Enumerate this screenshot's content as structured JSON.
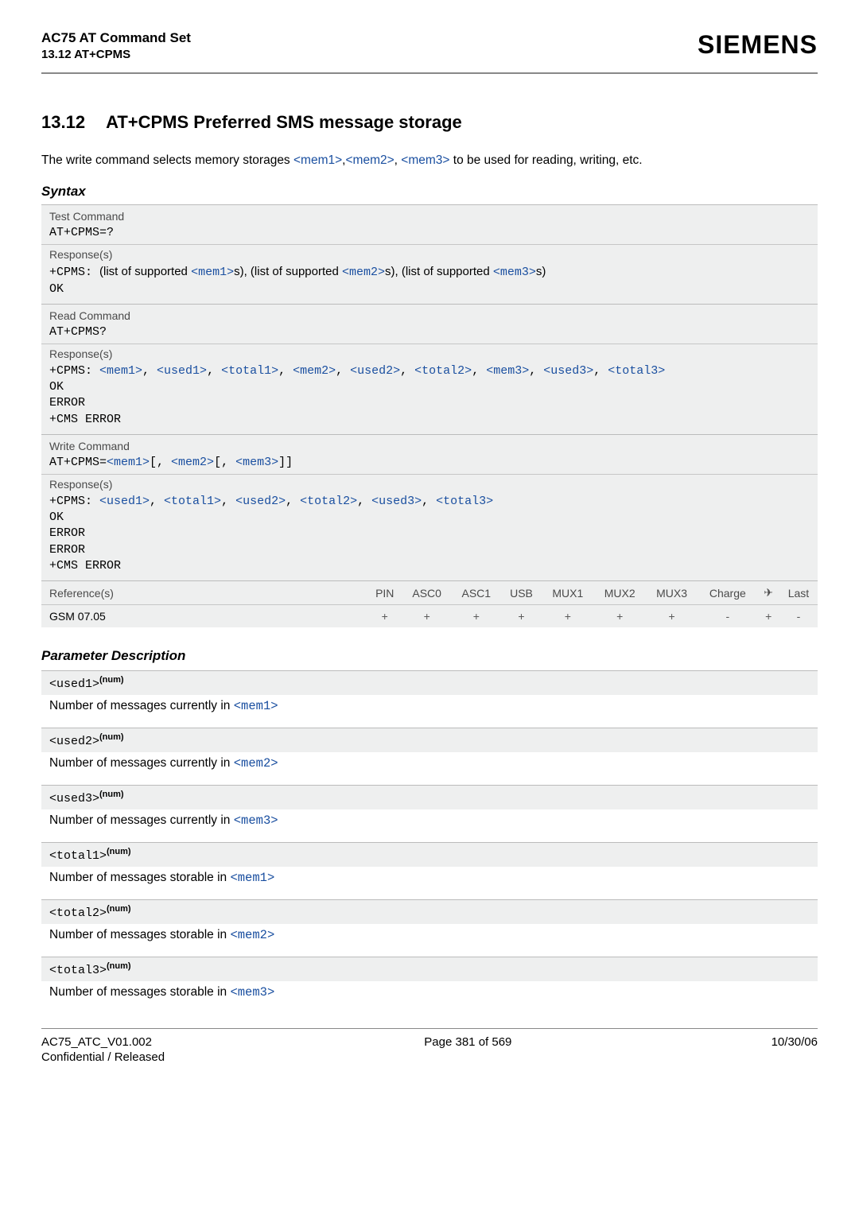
{
  "header": {
    "title1": "AC75 AT Command Set",
    "title2": "13.12 AT+CPMS",
    "brand": "SIEMENS"
  },
  "section": {
    "num": "13.12",
    "title": "AT+CPMS   Preferred SMS message storage"
  },
  "intro": {
    "pre": "The write command selects memory storages ",
    "m1": "<mem1>",
    "c1": ",",
    "m2": "<mem2>",
    "c2": ", ",
    "m3": "<mem3>",
    "post": " to be used for reading, writing, etc."
  },
  "labels": {
    "syntax": "Syntax",
    "test": "Test Command",
    "read": "Read Command",
    "write": "Write Command",
    "resp": "Response(s)",
    "ref": "Reference(s)",
    "pdesc": "Parameter Description"
  },
  "syntax": {
    "test_cmd": "AT+CPMS=?",
    "test_resp_pre": "+CPMS: ",
    "test_resp_t1a": "(list of supported ",
    "test_resp_m1": "<mem1>",
    "test_resp_t1b": "s), (list of supported ",
    "test_resp_m2": "<mem2>",
    "test_resp_t1c": "s), (list of supported ",
    "test_resp_m3": "<mem3>",
    "test_resp_t1d": "s)",
    "ok": "OK",
    "read_cmd": "AT+CPMS?",
    "read_resp_pre": "+CPMS: ",
    "rr_m1": "<mem1>",
    "rr_c": ", ",
    "rr_u1": "<used1>",
    "rr_t1": "<total1>",
    "rr_m2": "<mem2>",
    "rr_u2": "<used2>",
    "rr_t2": "<total2>",
    "rr_m3": "<mem3>",
    "rr_u3": "<used3>",
    "rr_t3": "<total3>",
    "error": "ERROR",
    "cmserr": "+CMS ERROR",
    "write_cmd_pre": "AT+CPMS=",
    "write_cmd_m1": "<mem1>",
    "write_cmd_b1": "[, ",
    "write_cmd_m2": "<mem2>",
    "write_cmd_b2": "[, ",
    "write_cmd_m3": "<mem3>",
    "write_cmd_b3": "]]",
    "write_resp_pre": "+CPMS: ",
    "wr_u1": "<used1>",
    "wr_t1": "<total1>",
    "wr_u2": "<used2>",
    "wr_t2": "<total2>",
    "wr_u3": "<used3>",
    "wr_t3": "<total3>"
  },
  "reftable": {
    "cols": [
      "PIN",
      "ASC0",
      "ASC1",
      "USB",
      "MUX1",
      "MUX2",
      "MUX3",
      "Charge",
      "✈",
      "Last"
    ],
    "ref": "GSM 07.05",
    "vals": [
      "+",
      "+",
      "+",
      "+",
      "+",
      "+",
      "+",
      "-",
      "+",
      "-"
    ]
  },
  "params": {
    "u1_name": "<used1>",
    "u1_desc_a": "Number of messages currently in ",
    "u1_desc_b": "<mem1>",
    "u2_name": "<used2>",
    "u2_desc_a": "Number of messages currently in ",
    "u2_desc_b": "<mem2>",
    "u3_name": "<used3>",
    "u3_desc_a": "Number of messages currently in ",
    "u3_desc_b": "<mem3>",
    "t1_name": "<total1>",
    "t1_desc_a": "Number of messages storable in ",
    "t1_desc_b": "<mem1>",
    "t2_name": "<total2>",
    "t2_desc_a": "Number of messages storable in ",
    "t2_desc_b": "<mem2>",
    "t3_name": "<total3>",
    "t3_desc_a": "Number of messages storable in ",
    "t3_desc_b": "<mem3>",
    "sup": "(num)"
  },
  "footer": {
    "l1": "AC75_ATC_V01.002",
    "l2": "Confidential / Released",
    "c": "Page 381 of 569",
    "r": "10/30/06"
  }
}
